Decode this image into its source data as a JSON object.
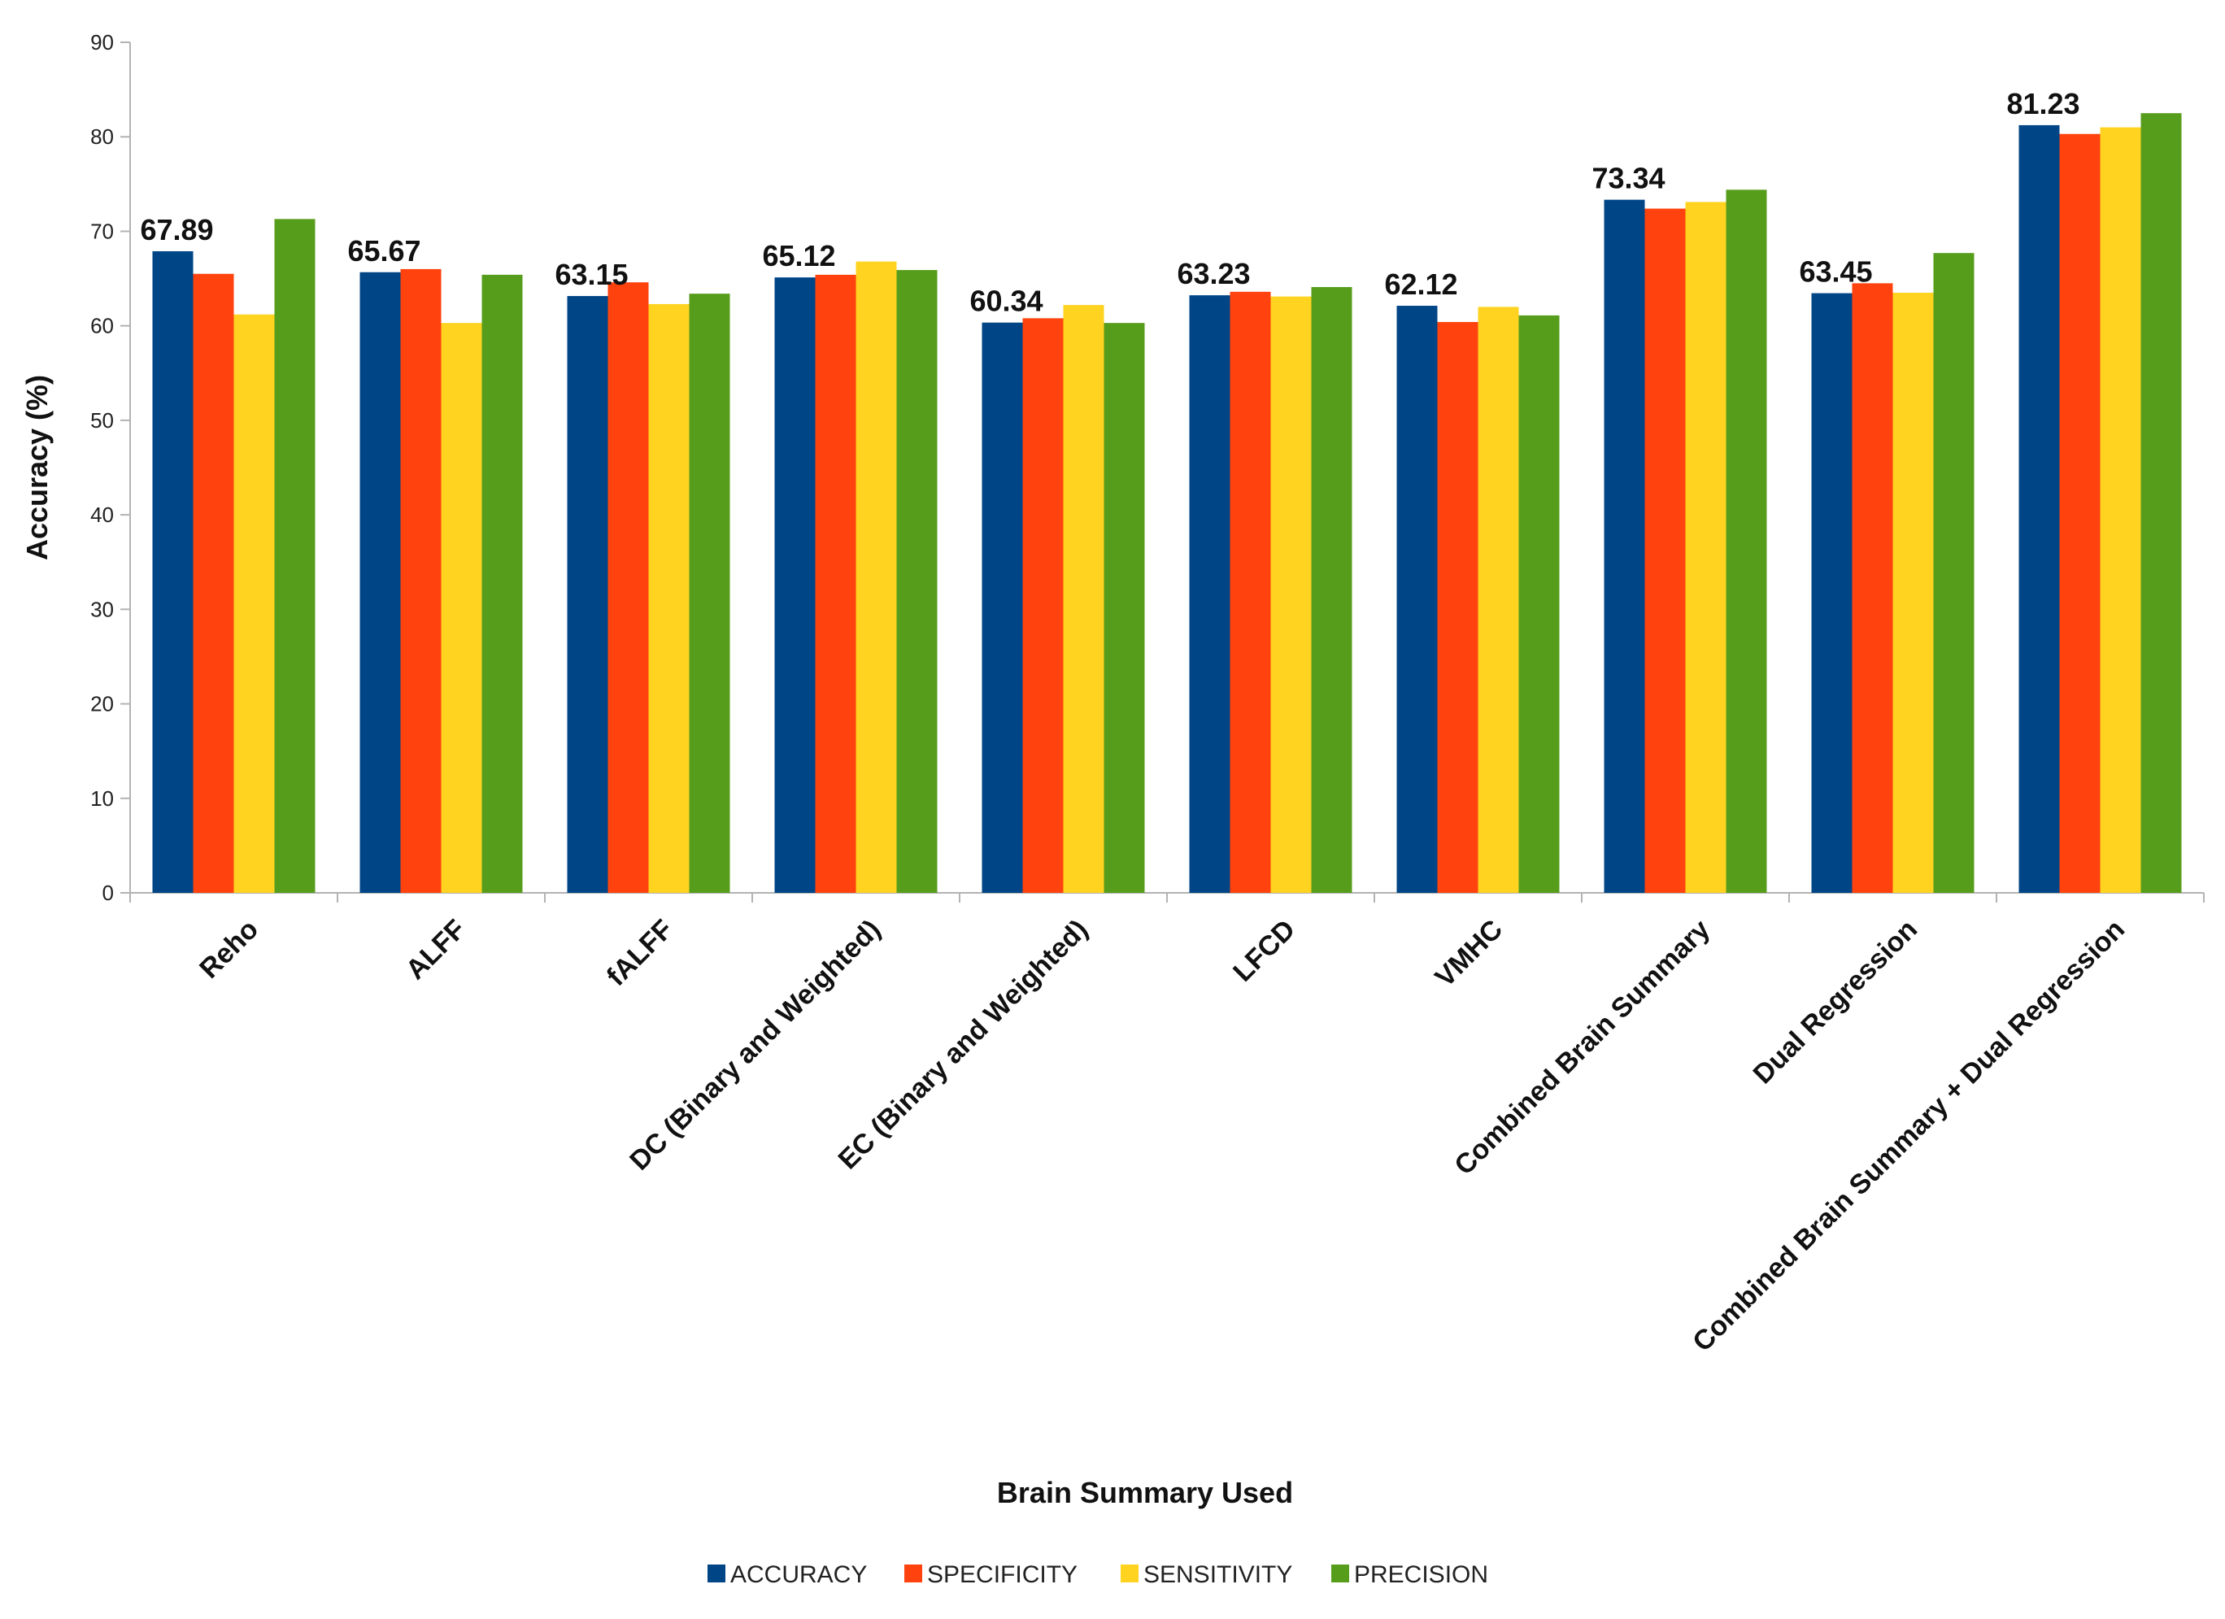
{
  "chart_data": {
    "type": "bar",
    "title": "",
    "xlabel": "Brain Summary Used",
    "ylabel": "Accuracy (%)",
    "ylim": [
      0,
      90
    ],
    "yticks": [
      0,
      10,
      20,
      30,
      40,
      50,
      60,
      70,
      80,
      90
    ],
    "grid": false,
    "legend_position": "bottom",
    "categories": [
      "Reho",
      "ALFF",
      "fALFF",
      "DC (Binary and Weighted)",
      "EC (Binary and Weighted)",
      "LFCD",
      "VMHC",
      "Combined Brain Summary",
      "Dual Regression",
      "Combined Brain Summary + Dual Regression"
    ],
    "series": [
      {
        "name": "ACCURACY",
        "color": "#004586",
        "values": [
          67.89,
          65.67,
          63.15,
          65.12,
          60.34,
          63.23,
          62.12,
          73.34,
          63.45,
          81.23
        ]
      },
      {
        "name": "SPECIFICITY",
        "color": "#ff420e",
        "values": [
          65.5,
          66.0,
          64.6,
          65.4,
          60.8,
          63.6,
          60.4,
          72.4,
          64.5,
          80.3
        ]
      },
      {
        "name": "SENSITIVITY",
        "color": "#ffd320",
        "values": [
          61.2,
          60.3,
          62.3,
          66.8,
          62.2,
          63.1,
          62.0,
          73.1,
          63.5,
          81.0
        ]
      },
      {
        "name": "PRECISION",
        "color": "#579d1c",
        "values": [
          71.3,
          65.4,
          63.4,
          65.9,
          60.3,
          64.1,
          61.1,
          74.4,
          67.7,
          82.5
        ]
      }
    ],
    "data_labels": [
      "67.89",
      "65.67",
      "63.15",
      "65.12",
      "60.34",
      "63.23",
      "62.12",
      "73.34",
      "63.45",
      "81.23"
    ]
  }
}
